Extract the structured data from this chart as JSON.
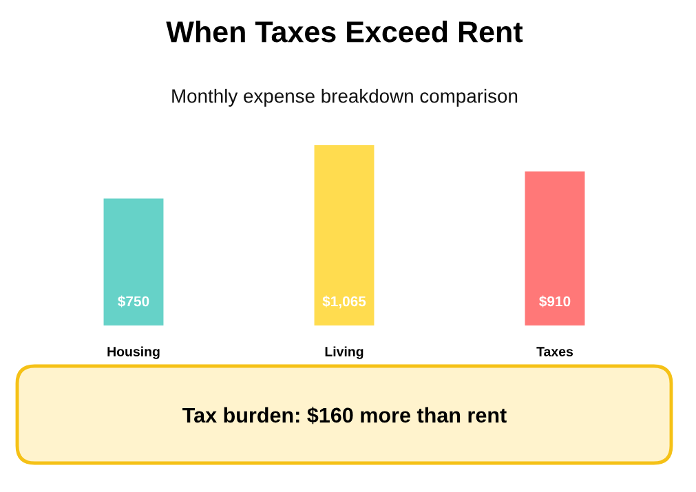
{
  "chart_data": {
    "type": "bar",
    "title": "When Taxes Exceed Rent",
    "subtitle": "Monthly expense breakdown comparison",
    "categories": [
      "Housing",
      "Living",
      "Taxes"
    ],
    "values": [
      750,
      1065,
      910
    ],
    "colors": [
      "#66d2c8",
      "#ffdc4f",
      "#ff7878"
    ],
    "value_labels": [
      "$750",
      "$1,065",
      "$910"
    ],
    "annotations": [
      "Tax burden: $160 more than rent"
    ]
  }
}
